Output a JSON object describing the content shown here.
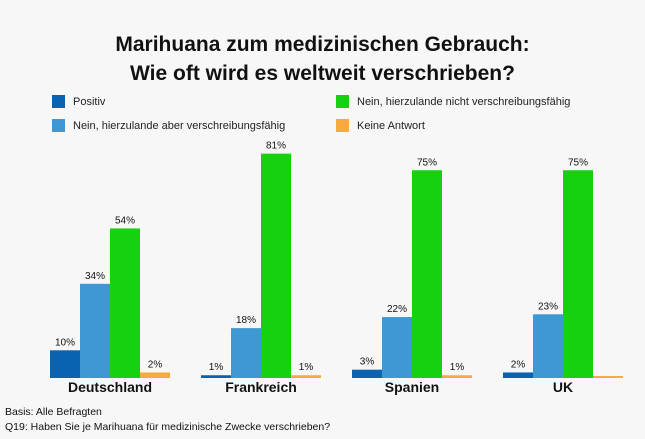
{
  "title_line1": "Marihuana zum medizinischen Gebrauch:",
  "title_line2": "Wie oft wird es weltweit verschrieben?",
  "footer": {
    "basis": "Basis: Alle Befragten",
    "question": "Q19: Haben Sie je Marihuana für medizinische Zwecke verschrieben?"
  },
  "chart_data": {
    "type": "bar",
    "title": "Marihuana zum medizinischen Gebrauch: Wie oft wird es weltweit verschrieben?",
    "categories": [
      "Deutschland",
      "Frankreich",
      "Spanien",
      "UK"
    ],
    "ylim": [
      0,
      100
    ],
    "grid": false,
    "legend_placement": "top",
    "series": [
      {
        "name": "Positiv",
        "color": "#0a63b0",
        "values": [
          10,
          1,
          3,
          2
        ],
        "labels": [
          "10%",
          "1%",
          "3%",
          "2%"
        ]
      },
      {
        "name": "Nein, hierzulande aber verschreibungsfähig",
        "color": "#3d98d3",
        "values": [
          34,
          18,
          22,
          23
        ],
        "labels": [
          "34%",
          "18%",
          "22%",
          "23%"
        ]
      },
      {
        "name": "Nein, hierzulande nicht verschreibungsfähig",
        "color": "#15d10f",
        "values": [
          54,
          81,
          75,
          75
        ],
        "labels": [
          "54%",
          "81%",
          "75%",
          "75%"
        ]
      },
      {
        "name": "Keine Antwort",
        "color": "#f7aa3d",
        "values": [
          2,
          1,
          1,
          0.6
        ],
        "labels": [
          "2%",
          "1%",
          "1%",
          ""
        ]
      }
    ]
  }
}
